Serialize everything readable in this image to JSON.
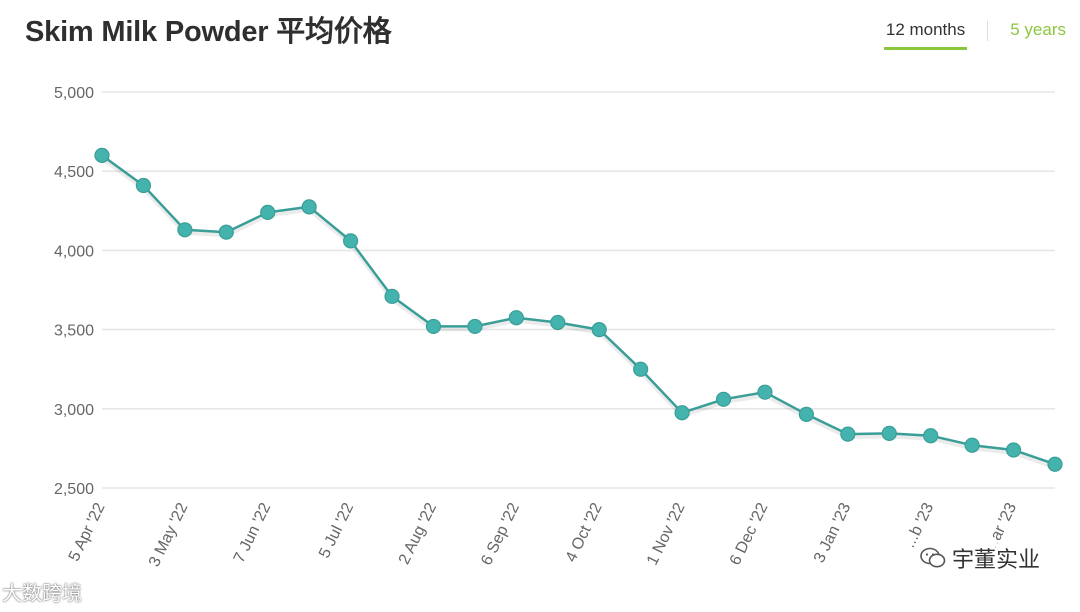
{
  "header": {
    "title": "Skim Milk Powder 平均价格",
    "tabs": [
      {
        "label": "12 months",
        "active": true
      },
      {
        "label": "5 years",
        "active": false
      }
    ]
  },
  "colors": {
    "line": "#3a9e98",
    "marker": "#45b3ad",
    "grid": "#e6e6e6",
    "axis_text": "#666666",
    "tab_accent": "#8cc63f"
  },
  "chart_data": {
    "type": "line",
    "title": "Skim Milk Powder 平均价格",
    "xlabel": "",
    "ylabel": "",
    "ylim": [
      2500,
      5000
    ],
    "yticks": [
      2500,
      3000,
      3500,
      4000,
      4500,
      5000
    ],
    "ytick_labels": [
      "2,500",
      "3,000",
      "3,500",
      "4,000",
      "4,500",
      "5,000"
    ],
    "grid": true,
    "x_tick_labels": [
      "5 Apr '22",
      "3 May '22",
      "7 Jun '22",
      "5 Jul '22",
      "2 Aug '22",
      "6 Sep '22",
      "4 Oct '22",
      "1 Nov '22",
      "6 Dec '22",
      "3 Jan '23",
      "...b '23",
      "...ar '23"
    ],
    "x_tick_positions": [
      0,
      2,
      4,
      6,
      8,
      10,
      12,
      14,
      16,
      18,
      20,
      22
    ],
    "series": [
      {
        "values": [
          4600,
          4410,
          4130,
          4115,
          4240,
          4275,
          4060,
          3710,
          3520,
          3520,
          3575,
          3545,
          3500,
          3250,
          2975,
          3060,
          3105,
          2965,
          2840,
          2845,
          2830,
          2770,
          2740,
          2650
        ]
      }
    ]
  },
  "watermarks": {
    "left": "大数跨境",
    "right": "宇董实业"
  }
}
